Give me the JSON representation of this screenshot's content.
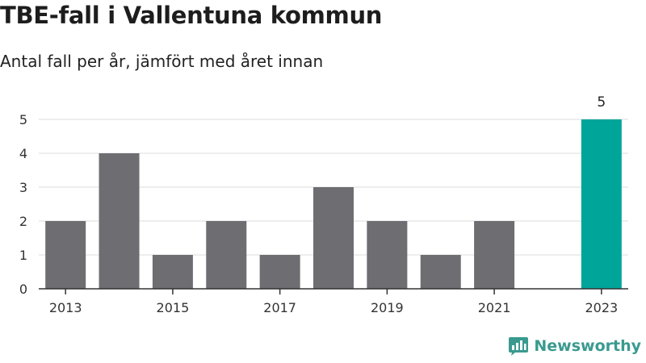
{
  "header": {
    "title": "TBE-fall i Vallentuna kommun",
    "subtitle": "Antal fall per år, jämfört med året innan"
  },
  "brand": {
    "name": "Newsworthy"
  },
  "colors": {
    "bar": "#6e6d72",
    "highlight": "#00a59a",
    "grid": "#dddddd",
    "axis": "#333333",
    "brand": "#3a9a8f"
  },
  "chart_data": {
    "type": "bar",
    "categories": [
      "2013",
      "2014",
      "2015",
      "2016",
      "2017",
      "2018",
      "2019",
      "2020",
      "2021",
      "2022",
      "2023"
    ],
    "values": [
      2,
      4,
      1,
      2,
      1,
      3,
      2,
      1,
      2,
      0,
      5
    ],
    "highlight_index": 10,
    "highlight_label": "5",
    "x_tick_labels": [
      "2013",
      "2015",
      "2017",
      "2019",
      "2021",
      "2023"
    ],
    "y_ticks": [
      0,
      1,
      2,
      3,
      4,
      5
    ],
    "ylim": [
      0,
      5
    ],
    "grid": true,
    "legend": "none",
    "title": "TBE-fall i Vallentuna kommun",
    "xlabel": "",
    "ylabel": ""
  }
}
